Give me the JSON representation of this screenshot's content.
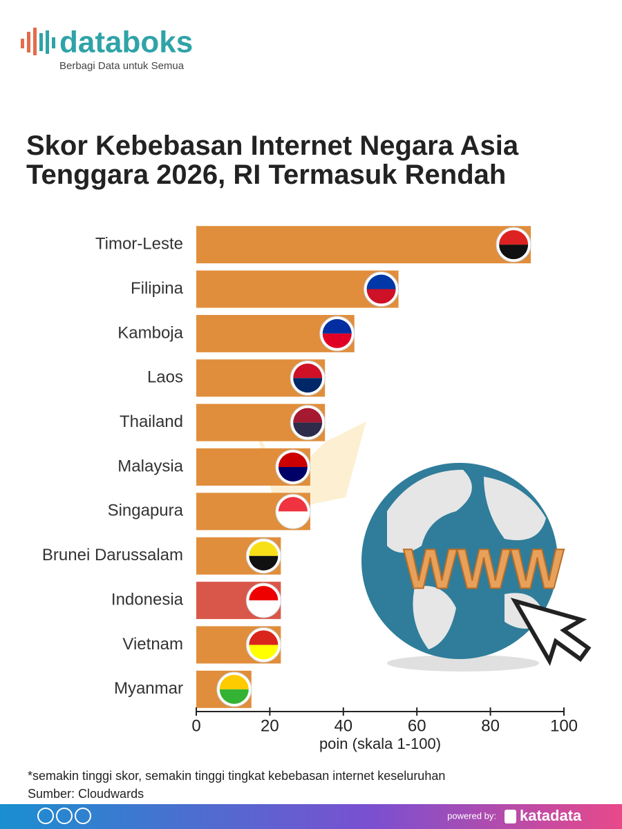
{
  "header": {
    "brand": "databoks",
    "tagline": "Berbagi Data untuk Semua"
  },
  "chart_data": {
    "type": "hbar",
    "title": "Skor Kebebasan Internet Negara Asia Tenggara 2026, RI Termasuk Rendah",
    "categories": [
      "Timor-Leste",
      "Filipina",
      "Kamboja",
      "Laos",
      "Thailand",
      "Malaysia",
      "Singapura",
      "Brunei Darussalam",
      "Indonesia",
      "Vietnam",
      "Myanmar"
    ],
    "values": [
      91,
      55,
      43,
      35,
      35,
      31,
      31,
      23,
      23,
      23,
      15
    ],
    "colors": [
      "#e08e3c",
      "#e08e3c",
      "#e08e3c",
      "#e08e3c",
      "#e08e3c",
      "#e08e3c",
      "#e08e3c",
      "#e08e3c",
      "#d9574a",
      "#e08e3c",
      "#e08e3c"
    ],
    "xlim": [
      0,
      100
    ],
    "xticks": [
      0,
      20,
      40,
      60,
      80,
      100
    ],
    "xlabel": "poin (skala 1-100)"
  },
  "illustration": {
    "text": "WWW"
  },
  "footer": {
    "note": "*semakin tinggi skor, semakin tinggi tingkat kebebasan internet keseluruhan",
    "source": "Sumber: Cloudwards",
    "powered_by": "powered by:",
    "brand": "katadata"
  }
}
